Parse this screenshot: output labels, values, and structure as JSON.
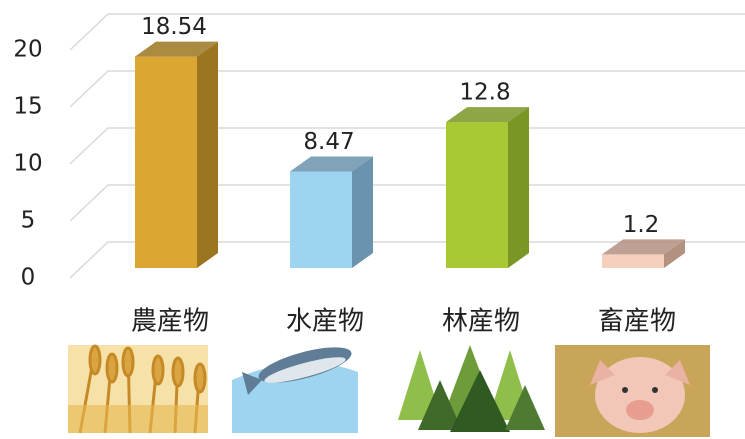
{
  "chart_data": {
    "type": "bar3d",
    "categories": [
      "農産物",
      "水産物",
      "林産物",
      "畜産物"
    ],
    "values": [
      18.54,
      8.47,
      12.8,
      1.2
    ],
    "colors": [
      "#dba631",
      "#9dd4f1",
      "#a9c934",
      "#f4d0bd"
    ],
    "side_colors": [
      "#9c7521",
      "#6a93ad",
      "#7a9624",
      "#b39181"
    ],
    "ylim": [
      0,
      20
    ],
    "yticks": [
      0,
      5,
      10,
      15,
      20
    ],
    "grid": true
  }
}
